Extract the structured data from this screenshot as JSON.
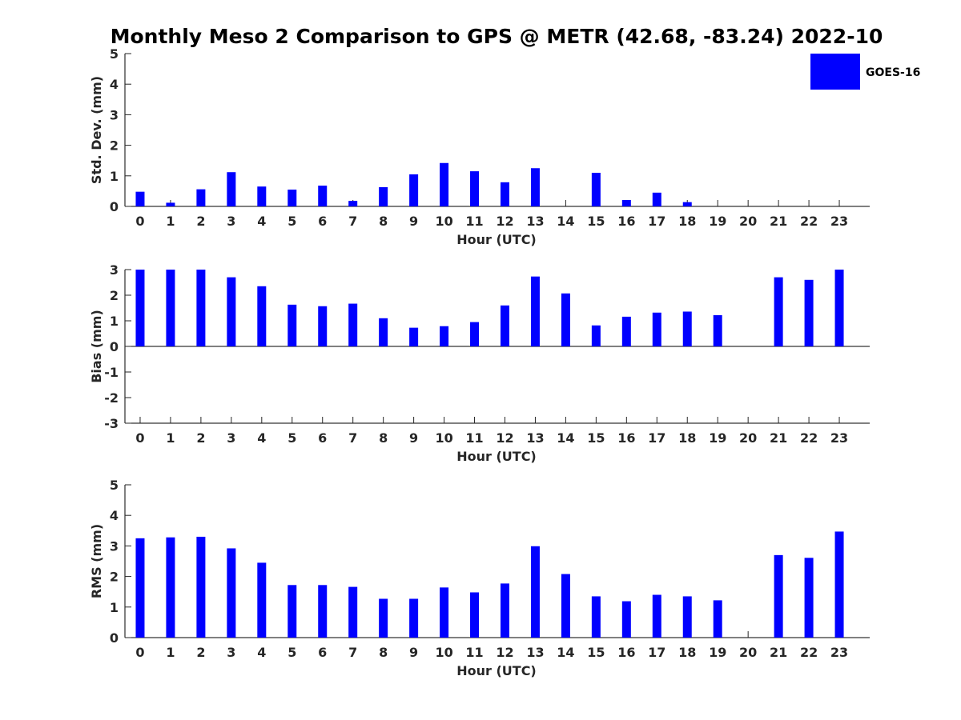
{
  "chart_data": {
    "title": "Monthly Meso 2 Comparison to GPS @ METR (42.68, -83.24) 2022-10",
    "type": "bar",
    "legend": {
      "entries": [
        "GOES-16"
      ],
      "placement": "top-right"
    },
    "bar_color": "#0000ff",
    "grid": false,
    "panels": [
      {
        "name": "std-dev",
        "xlabel": "Hour (UTC)",
        "ylabel": "Std. Dev. (mm)",
        "ylim": [
          0,
          5
        ],
        "yticks": [
          "0",
          "1",
          "2",
          "3",
          "4",
          "5"
        ],
        "categories": [
          "0",
          "1",
          "2",
          "3",
          "4",
          "5",
          "6",
          "7",
          "8",
          "9",
          "10",
          "11",
          "12",
          "13",
          "14",
          "15",
          "16",
          "17",
          "18",
          "19",
          "20",
          "21",
          "22",
          "23"
        ],
        "series": [
          {
            "name": "GOES-16",
            "values": [
              0.48,
              0.12,
              0.56,
              1.12,
              0.65,
              0.55,
              0.68,
              0.18,
              0.63,
              1.05,
              1.42,
              1.15,
              0.79,
              1.25,
              null,
              1.1,
              0.21,
              0.45,
              0.14,
              null,
              null,
              null,
              null,
              null
            ]
          }
        ]
      },
      {
        "name": "bias",
        "xlabel": "Hour (UTC)",
        "ylabel": "Bias (mm)",
        "ylim": [
          -3,
          3
        ],
        "yticks": [
          "-3",
          "-2",
          "-1",
          "0",
          "1",
          "2",
          "3"
        ],
        "categories": [
          "0",
          "1",
          "2",
          "3",
          "4",
          "5",
          "6",
          "7",
          "8",
          "9",
          "10",
          "11",
          "12",
          "13",
          "14",
          "15",
          "16",
          "17",
          "18",
          "19",
          "20",
          "21",
          "22",
          "23"
        ],
        "series": [
          {
            "name": "GOES-16",
            "values": [
              3.0,
              3.0,
              3.0,
              2.7,
              2.35,
              1.63,
              1.57,
              1.67,
              1.1,
              0.73,
              0.79,
              0.95,
              1.6,
              2.73,
              2.07,
              0.82,
              1.16,
              1.32,
              1.36,
              1.22,
              null,
              2.7,
              2.6,
              3.0
            ]
          }
        ]
      },
      {
        "name": "rms",
        "xlabel": "Hour (UTC)",
        "ylabel": "RMS (mm)",
        "ylim": [
          0,
          5
        ],
        "yticks": [
          "0",
          "1",
          "2",
          "3",
          "4",
          "5"
        ],
        "categories": [
          "0",
          "1",
          "2",
          "3",
          "4",
          "5",
          "6",
          "7",
          "8",
          "9",
          "10",
          "11",
          "12",
          "13",
          "14",
          "15",
          "16",
          "17",
          "18",
          "19",
          "20",
          "21",
          "22",
          "23"
        ],
        "series": [
          {
            "name": "GOES-16",
            "values": [
              3.25,
              3.28,
              3.3,
              2.92,
              2.45,
              1.72,
              1.72,
              1.66,
              1.27,
              1.27,
              1.64,
              1.48,
              1.77,
              2.99,
              2.08,
              1.35,
              1.19,
              1.4,
              1.35,
              1.22,
              null,
              2.7,
              2.61,
              3.47
            ]
          }
        ]
      }
    ]
  }
}
